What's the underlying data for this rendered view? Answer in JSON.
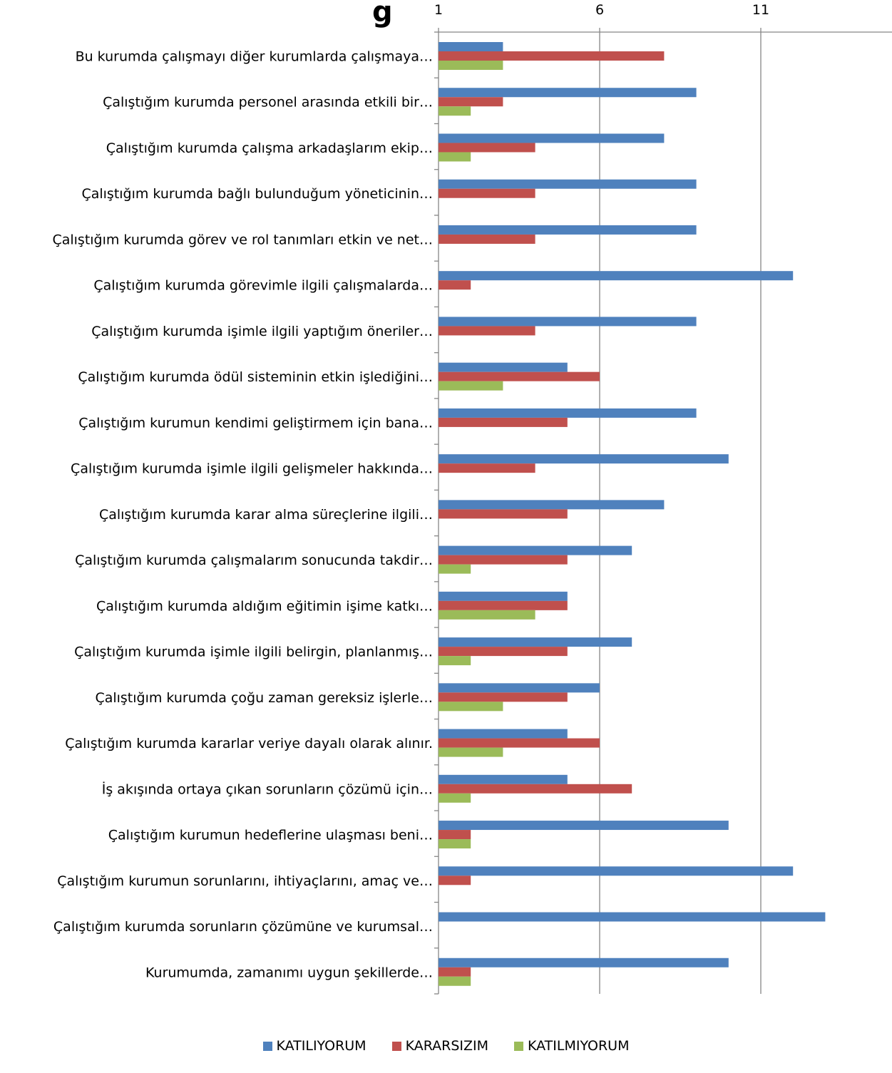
{
  "chart_data": {
    "type": "bar",
    "orientation": "horizontal",
    "title_fragment": "g",
    "x_ticks": [
      "1",
      "6",
      "11"
    ],
    "xlim": [
      1,
      15
    ],
    "grid": true,
    "legend_position": "bottom",
    "categories": [
      "Bu kurumda çalışmayı diğer kurumlarda çalışmaya…",
      "Çalıştığım kurumda personel arasında etkili bir…",
      "Çalıştığım kurumda çalışma arkadaşlarım ekip…",
      "Çalıştığım kurumda bağlı bulunduğum yöneticinin…",
      "Çalıştığım kurumda görev ve rol tanımları etkin ve net…",
      "Çalıştığım kurumda görevimle ilgili çalışmalarda…",
      "Çalıştığım kurumda işimle ilgili yaptığım öneriler…",
      "Çalıştığım kurumda ödül sisteminin etkin işlediğini…",
      "Çalıştığım kurumun kendimi geliştirmem için bana…",
      "Çalıştığım kurumda işimle ilgili gelişmeler hakkında…",
      "Çalıştığım kurumda karar alma süreçlerine ilgili…",
      "Çalıştığım kurumda çalışmalarım sonucunda takdir…",
      "Çalıştığım kurumda aldığım eğitimin işime katkı…",
      "Çalıştığım kurumda işimle ilgili belirgin, planlanmış…",
      "Çalıştığım kurumda çoğu zaman gereksiz işlerle…",
      "Çalıştığım kurumda kararlar veriye dayalı olarak alınır.",
      "İş akışında ortaya çıkan sorunların çözümü için…",
      "Çalıştığım kurumun hedeflerine ulaşması beni…",
      "Çalıştığım kurumun sorunlarını, ihtiyaçlarını, amaç ve…",
      "Çalıştığım kurumda sorunların çözümüne ve kurumsal…",
      "Kurumumda, zamanımı uygun şekillerde…"
    ],
    "series": [
      {
        "name": "KATILIYORUM",
        "color": "#4F81BD",
        "values": [
          3,
          9,
          8,
          9,
          9,
          12,
          9,
          5,
          9,
          10,
          8,
          7,
          5,
          7,
          6,
          5,
          5,
          10,
          12,
          13,
          10
        ]
      },
      {
        "name": "KARARSIZIM",
        "color": "#C0504D",
        "values": [
          8,
          3,
          4,
          4,
          4,
          2,
          4,
          6,
          5,
          4,
          5,
          5,
          5,
          5,
          5,
          6,
          7,
          2,
          2,
          1,
          2
        ]
      },
      {
        "name": "KATILMIYORUM",
        "color": "#9BBB59",
        "values": [
          3,
          2,
          2,
          1,
          1,
          1,
          1,
          3,
          1,
          1,
          1,
          2,
          4,
          2,
          3,
          3,
          2,
          2,
          1,
          1,
          2
        ]
      }
    ]
  }
}
